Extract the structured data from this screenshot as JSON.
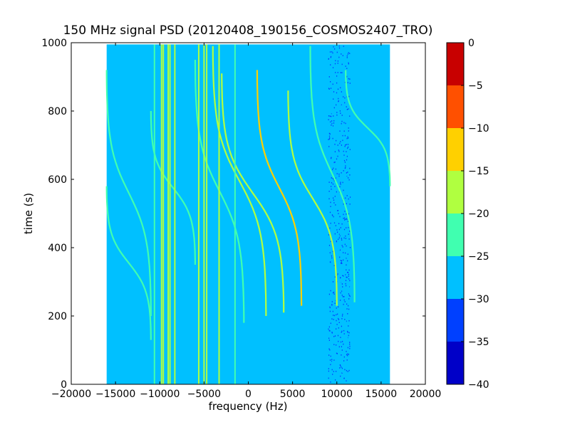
{
  "chart_data": {
    "type": "heatmap",
    "title": "150 MHz signal PSD (20120408_190156_COSMOS2407_TRO)",
    "xlabel": "frequency (Hz)",
    "ylabel": "time (s)",
    "xlim": [
      -20000,
      20000
    ],
    "ylim": [
      0,
      1000
    ],
    "x_ticks": [
      -20000,
      -15000,
      -10000,
      -5000,
      0,
      5000,
      10000,
      15000,
      20000
    ],
    "x_tick_labels": [
      "−20000",
      "−15000",
      "−10000",
      "−5000",
      "0",
      "5000",
      "10000",
      "15000",
      "20000"
    ],
    "y_ticks": [
      0,
      200,
      400,
      600,
      800,
      1000
    ],
    "y_tick_labels": [
      "0",
      "200",
      "400",
      "600",
      "800",
      "1000"
    ],
    "data_extent": {
      "x": [
        -16000,
        16000
      ],
      "y": [
        0,
        995
      ]
    },
    "background_level": -27,
    "vertical_lines": [
      {
        "freq": -10600,
        "level": -24
      },
      {
        "freq": -9800,
        "level": -17
      },
      {
        "freq": -9600,
        "level": -16
      },
      {
        "freq": -9050,
        "level": -18
      },
      {
        "freq": -8850,
        "level": -19
      },
      {
        "freq": -8300,
        "level": -18
      },
      {
        "freq": -5600,
        "level": -19
      },
      {
        "freq": -5000,
        "level": -20
      },
      {
        "freq": -4700,
        "level": -18
      },
      {
        "freq": -3300,
        "level": -18
      },
      {
        "freq": -1500,
        "level": -21
      }
    ],
    "drift_tracks": [
      {
        "freq_at_top": -16000,
        "freq_at_bottom": -11000,
        "time_top": 920,
        "time_bottom": 200,
        "level": -24
      },
      {
        "freq_at_top": -16000,
        "freq_at_bottom": -11000,
        "time_top": 580,
        "time_bottom": 130,
        "level": -24
      },
      {
        "freq_at_top": -11000,
        "freq_at_bottom": -6000,
        "time_top": 800,
        "time_bottom": 350,
        "level": -23
      },
      {
        "freq_at_top": -6000,
        "freq_at_bottom": -500,
        "time_top": 950,
        "time_bottom": 180,
        "level": -22
      },
      {
        "freq_at_top": -4000,
        "freq_at_bottom": 2000,
        "time_top": 990,
        "time_bottom": 200,
        "level": -20
      },
      {
        "freq_at_top": -3000,
        "freq_at_bottom": 4000,
        "time_top": 910,
        "time_bottom": 210,
        "level": -16
      },
      {
        "freq_at_top": 1000,
        "freq_at_bottom": 6000,
        "time_top": 920,
        "time_bottom": 230,
        "level": -13
      },
      {
        "freq_at_top": 4500,
        "freq_at_bottom": 10000,
        "time_top": 860,
        "time_bottom": 230,
        "level": -18
      },
      {
        "freq_at_top": 7000,
        "freq_at_bottom": 12000,
        "time_top": 990,
        "time_bottom": 240,
        "level": -22
      },
      {
        "freq_at_top": 11000,
        "freq_at_bottom": 16000,
        "time_top": 920,
        "time_bottom": 580,
        "level": -24
      }
    ],
    "noisy_band": {
      "freq_from": 9000,
      "freq_to": 11500,
      "level": -33
    },
    "colorbar": {
      "min": -40,
      "max": 0,
      "ticks": [
        0,
        -5,
        -10,
        -15,
        -20,
        -25,
        -30,
        -35,
        -40
      ],
      "tick_labels": [
        "0",
        "−5",
        "−10",
        "−15",
        "−20",
        "−25",
        "−30",
        "−35",
        "−40"
      ],
      "colors": [
        "#0000c8",
        "#0040ff",
        "#00c0ff",
        "#40ffb0",
        "#b0ff40",
        "#ffd000",
        "#ff5000",
        "#c80000"
      ]
    },
    "grid": false,
    "legend": "none"
  }
}
